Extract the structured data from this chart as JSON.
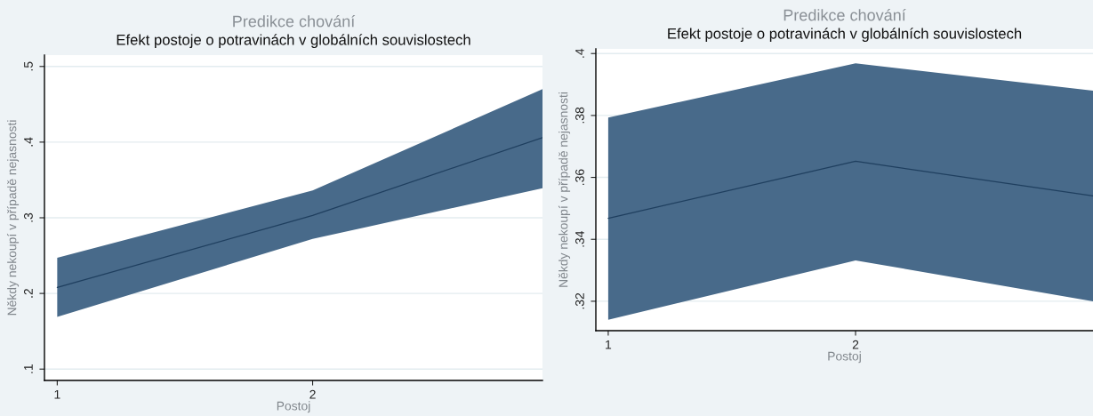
{
  "chart_data": [
    {
      "type": "line",
      "title": "Predikce chování",
      "subtitle": "Efekt postoje o potravinách v globálních souvislostech",
      "xlabel": "Postoj",
      "ylabel": "Někdy nekoupí v případě nejasnosti",
      "x": [
        1,
        2,
        2.9
      ],
      "xlim": [
        0.95,
        2.9
      ],
      "xticks": [
        1,
        2
      ],
      "ylim": [
        0.085,
        0.515
      ],
      "yticks": [
        {
          "value": 0.1,
          "label": ".1"
        },
        {
          "value": 0.2,
          "label": ".2"
        },
        {
          "value": 0.3,
          "label": ".3"
        },
        {
          "value": 0.4,
          "label": ".4"
        },
        {
          "value": 0.5,
          "label": ".5"
        }
      ],
      "grid": "y",
      "series": [
        {
          "color": "#1f3f5f",
          "values": [
            0.208,
            0.303,
            0.406
          ],
          "lower": [
            0.169,
            0.272,
            0.339
          ],
          "upper": [
            0.247,
            0.336,
            0.47
          ]
        }
      ]
    },
    {
      "type": "line",
      "title": "Predikce chování",
      "subtitle": "Efekt postoje o potravinách v globálních souvislostech",
      "xlabel": "Postoj",
      "ylabel": "Někdy nekoupí v případě nejasnosti",
      "x": [
        1,
        2,
        2.96
      ],
      "xlim": [
        0.95,
        2.96
      ],
      "xticks": [
        1,
        2
      ],
      "ylim": [
        0.3105,
        0.4015
      ],
      "yticks": [
        {
          "value": 0.32,
          "label": ".32"
        },
        {
          "value": 0.34,
          "label": ".34"
        },
        {
          "value": 0.36,
          "label": ".36"
        },
        {
          "value": 0.38,
          "label": ".38"
        },
        {
          "value": 0.4,
          "label": ".4"
        }
      ],
      "grid": "y",
      "series": [
        {
          "color": "#1f3f5f",
          "values": [
            0.3468,
            0.3652,
            0.354
          ],
          "lower": [
            0.314,
            0.3332,
            0.32
          ],
          "upper": [
            0.3793,
            0.3968,
            0.388
          ]
        }
      ]
    }
  ]
}
